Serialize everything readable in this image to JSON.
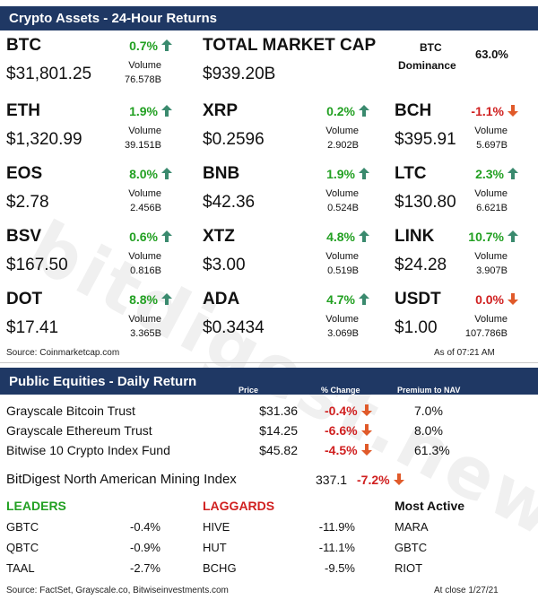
{
  "crypto": {
    "header": "Crypto Assets - 24-Hour Returns",
    "volume_label": "Volume",
    "assets": [
      {
        "sym": "BTC",
        "price": "$31,801.25",
        "pct": "0.7%",
        "dir": "up",
        "vol": "76.578B"
      },
      {
        "sym": "ETH",
        "price": "$1,320.99",
        "pct": "1.9%",
        "dir": "up",
        "vol": "39.151B"
      },
      {
        "sym": "XRP",
        "price": "$0.2596",
        "pct": "0.2%",
        "dir": "up",
        "vol": "2.902B"
      },
      {
        "sym": "BCH",
        "price": "$395.91",
        "pct": "-1.1%",
        "dir": "down",
        "vol": "5.697B"
      },
      {
        "sym": "EOS",
        "price": "$2.78",
        "pct": "8.0%",
        "dir": "up",
        "vol": "2.456B"
      },
      {
        "sym": "BNB",
        "price": "$42.36",
        "pct": "1.9%",
        "dir": "up",
        "vol": "0.524B"
      },
      {
        "sym": "LTC",
        "price": "$130.80",
        "pct": "2.3%",
        "dir": "up",
        "vol": "6.621B"
      },
      {
        "sym": "BSV",
        "price": "$167.50",
        "pct": "0.6%",
        "dir": "up",
        "vol": "0.816B"
      },
      {
        "sym": "XTZ",
        "price": "$3.00",
        "pct": "4.8%",
        "dir": "up",
        "vol": "0.519B"
      },
      {
        "sym": "LINK",
        "price": "$24.28",
        "pct": "10.7%",
        "dir": "up",
        "vol": "3.907B"
      },
      {
        "sym": "DOT",
        "price": "$17.41",
        "pct": "8.8%",
        "dir": "up",
        "vol": "3.365B"
      },
      {
        "sym": "ADA",
        "price": "$0.3434",
        "pct": "4.7%",
        "dir": "up",
        "vol": "3.069B"
      },
      {
        "sym": "USDT",
        "price": "$1.00",
        "pct": "0.0%",
        "dir": "down",
        "vol": "107.786B"
      }
    ],
    "market_cap": {
      "label": "TOTAL MARKET CAP",
      "value": "$939.20B"
    },
    "dominance": {
      "label1": "BTC",
      "label2": "Dominance",
      "value": "63.0%"
    },
    "source": "Source: Coinmarketcap.com",
    "as_of": "As of 07:21 AM"
  },
  "equities": {
    "header": "Public Equities - Daily Return",
    "col_price": "Price",
    "col_change": "% Change",
    "col_premium": "Premium to NAV",
    "rows": [
      {
        "name": "Grayscale Bitcoin Trust",
        "price": "$31.36",
        "change": "-0.4%",
        "premium": "7.0%"
      },
      {
        "name": "Grayscale Ethereum Trust",
        "price": "$14.25",
        "change": "-6.6%",
        "premium": "8.0%"
      },
      {
        "name": "Bitwise 10 Crypto Index Fund",
        "price": "$45.82",
        "change": "-4.5%",
        "premium": "61.3%"
      }
    ],
    "mining": {
      "name": "BitDigest North American Mining Index",
      "value": "337.1",
      "change": "-7.2%"
    },
    "leaders_title": "LEADERS",
    "laggards_title": "LAGGARDS",
    "active_title": "Most Active",
    "leaders": [
      {
        "t": "GBTC",
        "v": "-0.4%"
      },
      {
        "t": "QBTC",
        "v": "-0.9%"
      },
      {
        "t": "TAAL",
        "v": "-2.7%"
      }
    ],
    "laggards": [
      {
        "t": "HIVE",
        "v": "-11.9%"
      },
      {
        "t": "HUT",
        "v": "-11.1%"
      },
      {
        "t": "BCHG",
        "v": "-9.5%"
      }
    ],
    "active": [
      "MARA",
      "GBTC",
      "RIOT"
    ],
    "source": "Source: FactSet, Grayscale.co, Bitwiseinvestments.com",
    "close": "At close 1/27/21"
  },
  "watermark": "bitdigest.news",
  "colors": {
    "header_bg": "#1f3864",
    "up": "#22a022",
    "down": "#d02020",
    "arrow_up": "#3a8a6e",
    "arrow_down": "#e05a2a"
  }
}
